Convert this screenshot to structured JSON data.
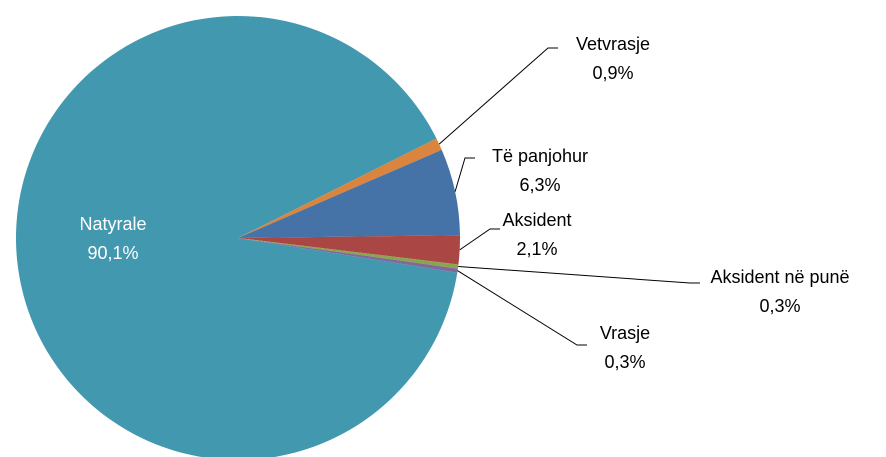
{
  "chart_data": {
    "type": "pie",
    "categories": [
      "Natyrale",
      "Vetvrasje",
      "Të panjohur",
      "Aksident",
      "Aksident në punë",
      "Vrasje"
    ],
    "values": [
      90.1,
      0.9,
      6.3,
      2.1,
      0.3,
      0.3
    ],
    "value_labels": [
      "90,1%",
      "0,9%",
      "6,3%",
      "2,1%",
      "0,3%",
      "0,3%"
    ],
    "colors": [
      "#4198af",
      "#db843d",
      "#4572a7",
      "#aa4643",
      "#89a54e",
      "#80699b"
    ]
  }
}
